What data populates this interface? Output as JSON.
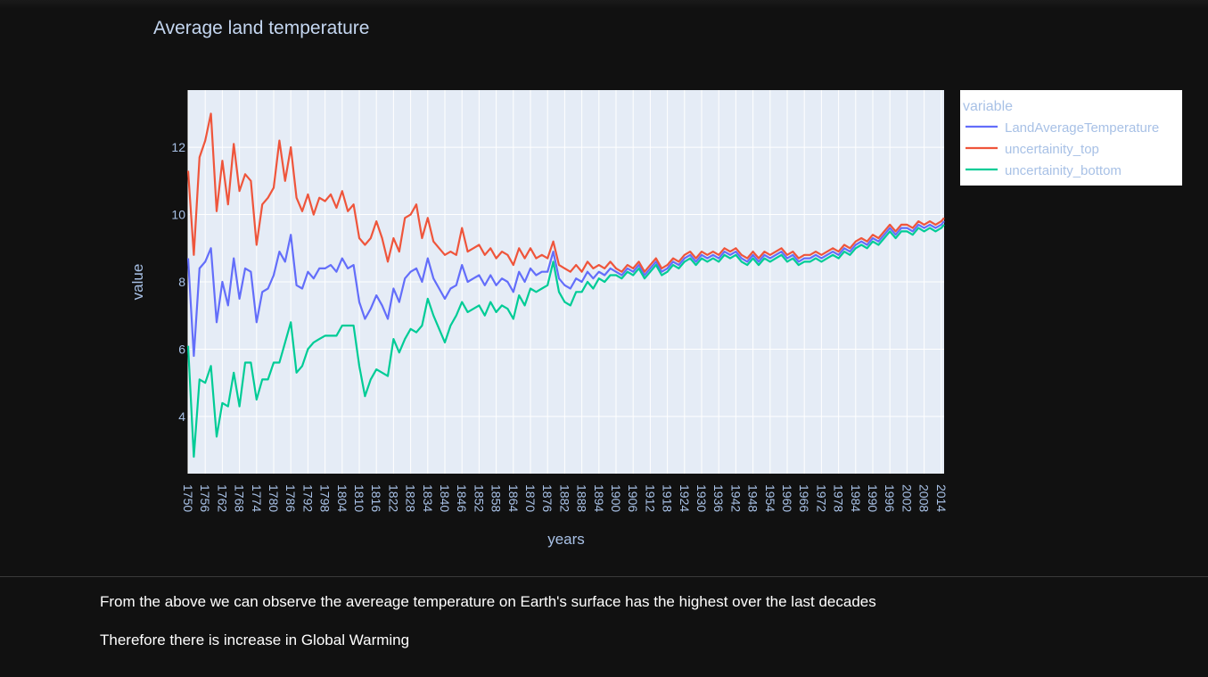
{
  "notes": [
    "From the above we can observe the avereage temperature on Earth's surface has the highest over the last decades",
    "Therefore there is increase in Global Warming"
  ],
  "chart_data": {
    "type": "line",
    "title": "Average land temperature",
    "xlabel": "years",
    "ylabel": "value",
    "xlim": [
      1750,
      2015
    ],
    "ylim": [
      2.3,
      13.7
    ],
    "yticks": [
      4,
      6,
      8,
      10,
      12
    ],
    "xticks": [
      "1750",
      "1756",
      "1762",
      "1768",
      "1774",
      "1780",
      "1786",
      "1792",
      "1798",
      "1804",
      "1810",
      "1816",
      "1822",
      "1828",
      "1834",
      "1840",
      "1846",
      "1852",
      "1858",
      "1864",
      "1870",
      "1876",
      "1882",
      "1888",
      "1894",
      "1900",
      "1906",
      "1912",
      "1918",
      "1924",
      "1930",
      "1936",
      "1942",
      "1948",
      "1954",
      "1960",
      "1966",
      "1972",
      "1978",
      "1984",
      "1990",
      "1996",
      "2002",
      "2008",
      "2014"
    ],
    "grid": true,
    "legend_title": "variable",
    "legend_position": "top-right, outside plot",
    "colors": {
      "background": "#111111",
      "plot_bg": "#e5ecf6",
      "text": "#a8c1e6",
      "title": "#c4d6f0"
    },
    "x": [
      1750,
      1752,
      1754,
      1756,
      1758,
      1760,
      1762,
      1764,
      1766,
      1768,
      1770,
      1772,
      1774,
      1776,
      1778,
      1780,
      1782,
      1784,
      1786,
      1788,
      1790,
      1792,
      1794,
      1796,
      1798,
      1800,
      1802,
      1804,
      1806,
      1808,
      1810,
      1812,
      1814,
      1816,
      1818,
      1820,
      1822,
      1824,
      1826,
      1828,
      1830,
      1832,
      1834,
      1836,
      1838,
      1840,
      1842,
      1844,
      1846,
      1848,
      1850,
      1852,
      1854,
      1856,
      1858,
      1860,
      1862,
      1864,
      1866,
      1868,
      1870,
      1872,
      1874,
      1876,
      1878,
      1880,
      1882,
      1884,
      1886,
      1888,
      1890,
      1892,
      1894,
      1896,
      1898,
      1900,
      1902,
      1904,
      1906,
      1908,
      1910,
      1912,
      1914,
      1916,
      1918,
      1920,
      1922,
      1924,
      1926,
      1928,
      1930,
      1932,
      1934,
      1936,
      1938,
      1940,
      1942,
      1944,
      1946,
      1948,
      1950,
      1952,
      1954,
      1956,
      1958,
      1960,
      1962,
      1964,
      1966,
      1968,
      1970,
      1972,
      1974,
      1976,
      1978,
      1980,
      1982,
      1984,
      1986,
      1988,
      1990,
      1992,
      1994,
      1996,
      1998,
      2000,
      2002,
      2004,
      2006,
      2008,
      2010,
      2012,
      2014,
      2015
    ],
    "series": [
      {
        "name": "LandAverageTemperature",
        "color": "#636efa",
        "values": [
          8.7,
          5.8,
          8.4,
          8.6,
          9.0,
          6.8,
          8.0,
          7.3,
          8.7,
          7.5,
          8.4,
          8.3,
          6.8,
          7.7,
          7.8,
          8.2,
          8.9,
          8.6,
          9.4,
          7.9,
          7.8,
          8.3,
          8.1,
          8.4,
          8.4,
          8.5,
          8.3,
          8.7,
          8.4,
          8.5,
          7.4,
          6.9,
          7.2,
          7.6,
          7.3,
          6.9,
          7.8,
          7.4,
          8.1,
          8.3,
          8.4,
          8.0,
          8.7,
          8.1,
          7.8,
          7.5,
          7.8,
          7.9,
          8.5,
          8.0,
          8.1,
          8.2,
          7.9,
          8.2,
          7.9,
          8.1,
          8.0,
          7.7,
          8.3,
          8.0,
          8.4,
          8.2,
          8.3,
          8.3,
          8.9,
          8.1,
          7.9,
          7.8,
          8.1,
          8.0,
          8.3,
          8.1,
          8.3,
          8.2,
          8.4,
          8.3,
          8.2,
          8.4,
          8.3,
          8.5,
          8.2,
          8.4,
          8.6,
          8.3,
          8.4,
          8.6,
          8.5,
          8.7,
          8.8,
          8.6,
          8.8,
          8.7,
          8.8,
          8.7,
          8.9,
          8.8,
          8.9,
          8.7,
          8.6,
          8.8,
          8.6,
          8.8,
          8.7,
          8.8,
          8.9,
          8.7,
          8.8,
          8.6,
          8.7,
          8.7,
          8.8,
          8.7,
          8.8,
          8.9,
          8.8,
          9.0,
          8.9,
          9.1,
          9.2,
          9.1,
          9.3,
          9.2,
          9.4,
          9.6,
          9.4,
          9.6,
          9.6,
          9.5,
          9.7,
          9.6,
          9.7,
          9.6,
          9.7,
          9.8
        ]
      },
      {
        "name": "uncertainity_top",
        "color": "#ef553b",
        "values": [
          11.3,
          8.8,
          11.7,
          12.2,
          13.0,
          10.1,
          11.6,
          10.3,
          12.1,
          10.7,
          11.2,
          11.0,
          9.1,
          10.3,
          10.5,
          10.8,
          12.2,
          11.0,
          12.0,
          10.5,
          10.1,
          10.6,
          10.0,
          10.5,
          10.4,
          10.6,
          10.2,
          10.7,
          10.1,
          10.3,
          9.3,
          9.1,
          9.3,
          9.8,
          9.3,
          8.6,
          9.3,
          8.9,
          9.9,
          10.0,
          10.3,
          9.3,
          9.9,
          9.2,
          9.0,
          8.8,
          8.9,
          8.8,
          9.6,
          8.9,
          9.0,
          9.1,
          8.8,
          9.0,
          8.7,
          8.9,
          8.8,
          8.5,
          9.0,
          8.7,
          9.0,
          8.7,
          8.8,
          8.7,
          9.2,
          8.5,
          8.4,
          8.3,
          8.5,
          8.3,
          8.6,
          8.4,
          8.5,
          8.4,
          8.6,
          8.4,
          8.3,
          8.5,
          8.4,
          8.6,
          8.3,
          8.5,
          8.7,
          8.4,
          8.5,
          8.7,
          8.6,
          8.8,
          8.9,
          8.7,
          8.9,
          8.8,
          8.9,
          8.8,
          9.0,
          8.9,
          9.0,
          8.8,
          8.7,
          8.9,
          8.7,
          8.9,
          8.8,
          8.9,
          9.0,
          8.8,
          8.9,
          8.7,
          8.8,
          8.8,
          8.9,
          8.8,
          8.9,
          9.0,
          8.9,
          9.1,
          9.0,
          9.2,
          9.3,
          9.2,
          9.4,
          9.3,
          9.5,
          9.7,
          9.5,
          9.7,
          9.7,
          9.6,
          9.8,
          9.7,
          9.8,
          9.7,
          9.8,
          9.9
        ]
      },
      {
        "name": "uncertainity_bottom",
        "color": "#00cc96",
        "values": [
          6.1,
          2.8,
          5.1,
          5.0,
          5.5,
          3.4,
          4.4,
          4.3,
          5.3,
          4.3,
          5.6,
          5.6,
          4.5,
          5.1,
          5.1,
          5.6,
          5.6,
          6.2,
          6.8,
          5.3,
          5.5,
          6.0,
          6.2,
          6.3,
          6.4,
          6.4,
          6.4,
          6.7,
          6.7,
          6.7,
          5.5,
          4.6,
          5.1,
          5.4,
          5.3,
          5.2,
          6.3,
          5.9,
          6.3,
          6.6,
          6.5,
          6.7,
          7.5,
          7.0,
          6.6,
          6.2,
          6.7,
          7.0,
          7.4,
          7.1,
          7.2,
          7.3,
          7.0,
          7.4,
          7.1,
          7.3,
          7.2,
          6.9,
          7.6,
          7.3,
          7.8,
          7.7,
          7.8,
          7.9,
          8.6,
          7.7,
          7.4,
          7.3,
          7.7,
          7.7,
          8.0,
          7.8,
          8.1,
          8.0,
          8.2,
          8.2,
          8.1,
          8.3,
          8.2,
          8.4,
          8.1,
          8.3,
          8.5,
          8.2,
          8.3,
          8.5,
          8.4,
          8.6,
          8.7,
          8.5,
          8.7,
          8.6,
          8.7,
          8.6,
          8.8,
          8.7,
          8.8,
          8.6,
          8.5,
          8.7,
          8.5,
          8.7,
          8.6,
          8.7,
          8.8,
          8.6,
          8.7,
          8.5,
          8.6,
          8.6,
          8.7,
          8.6,
          8.7,
          8.8,
          8.7,
          8.9,
          8.8,
          9.0,
          9.1,
          9.0,
          9.2,
          9.1,
          9.3,
          9.5,
          9.3,
          9.5,
          9.5,
          9.4,
          9.6,
          9.5,
          9.6,
          9.5,
          9.6,
          9.7
        ]
      }
    ]
  }
}
